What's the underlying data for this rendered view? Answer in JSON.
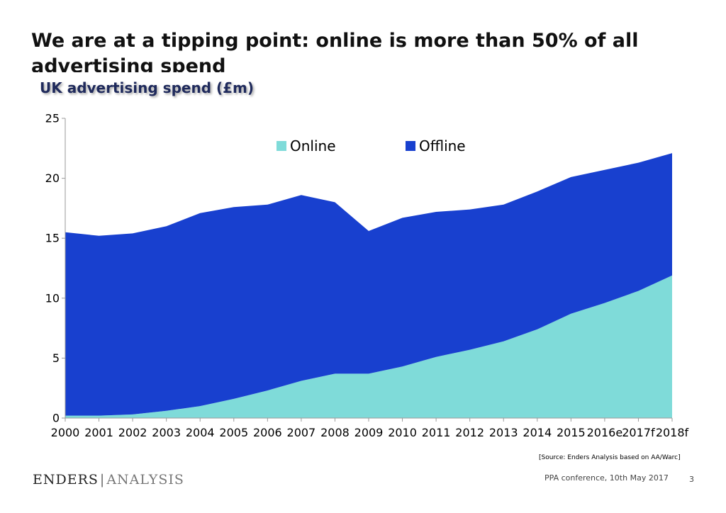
{
  "slide": {
    "title": "We are at a tipping point: online is more than 50% of all advertising spend",
    "source": "[Source: Enders Analysis based on AA/Warc]",
    "footer_logo_left": "ENDERS",
    "footer_logo_sep": "|",
    "footer_logo_right": "ANALYSIS",
    "conference": "PPA conference, 10th May 2017",
    "page_number": "3"
  },
  "colors": {
    "online": "#7fdbd9",
    "offline": "#1840cf",
    "axis": "#9a9a9a"
  },
  "chart_data": {
    "type": "area",
    "stacked": true,
    "title": "UK advertising spend (£m)",
    "xlabel": "",
    "ylabel": "",
    "categories": [
      "2000",
      "2001",
      "2002",
      "2003",
      "2004",
      "2005",
      "2006",
      "2007",
      "2008",
      "2009",
      "2010",
      "2011",
      "2012",
      "2013",
      "2014",
      "2015",
      "2016e",
      "2017f",
      "2018f"
    ],
    "ylim": [
      0,
      25
    ],
    "yticks": [
      0,
      5,
      10,
      15,
      20,
      25
    ],
    "legend_position": "top",
    "grid": false,
    "series": [
      {
        "name": "Online",
        "color": "#7fdbd9",
        "values": [
          0.2,
          0.2,
          0.3,
          0.6,
          1.0,
          1.6,
          2.3,
          3.1,
          3.7,
          3.7,
          4.3,
          5.1,
          5.7,
          6.4,
          7.4,
          8.7,
          9.6,
          10.6,
          11.9
        ]
      },
      {
        "name": "Offline",
        "color": "#1840cf",
        "values": [
          15.3,
          15.0,
          15.1,
          15.4,
          16.1,
          16.0,
          15.5,
          15.5,
          14.3,
          11.9,
          12.4,
          12.1,
          11.7,
          11.4,
          11.5,
          11.4,
          11.1,
          10.7,
          10.2
        ]
      }
    ]
  }
}
